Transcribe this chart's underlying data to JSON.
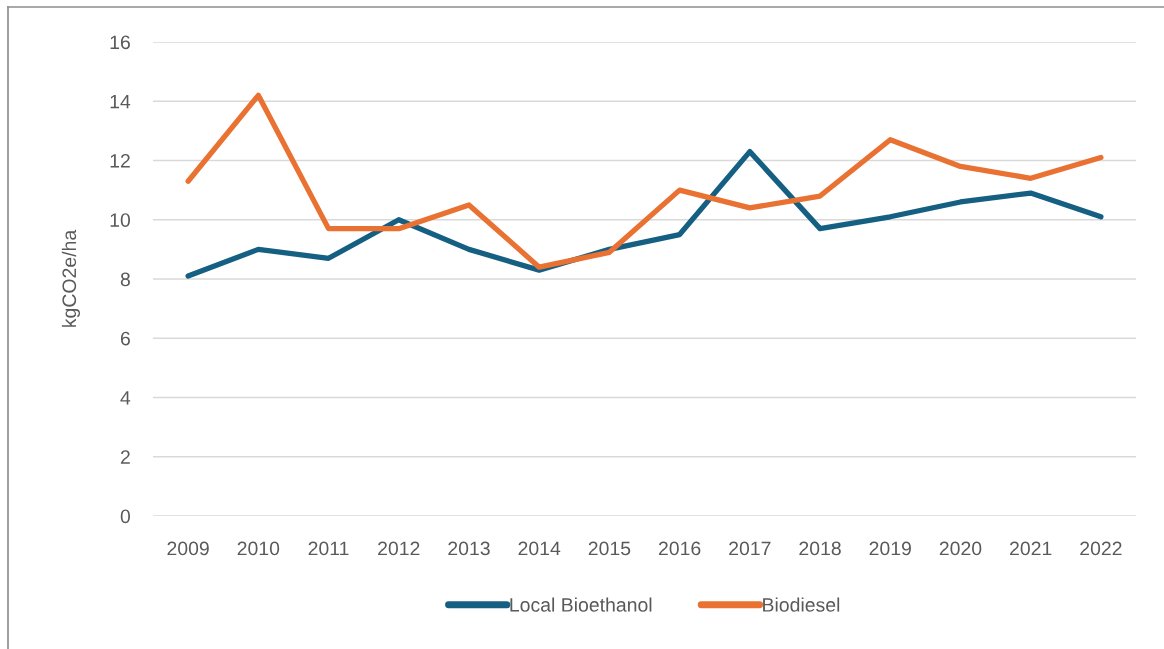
{
  "chart_data": {
    "type": "line",
    "ylabel": "kgCO2e/ha",
    "categories": [
      "2009",
      "2010",
      "2011",
      "2012",
      "2013",
      "2014",
      "2015",
      "2016",
      "2017",
      "2018",
      "2019",
      "2020",
      "2021",
      "2022"
    ],
    "series": [
      {
        "name": "Local Bioethanol",
        "color": "#156082",
        "values": [
          8.1,
          9.0,
          8.7,
          10.0,
          9.0,
          8.3,
          9.0,
          9.5,
          12.3,
          9.7,
          10.1,
          10.6,
          10.9,
          10.1
        ]
      },
      {
        "name": "Biodiesel",
        "color": "#e97132",
        "values": [
          11.3,
          14.2,
          9.7,
          9.7,
          10.5,
          8.4,
          8.9,
          11.0,
          10.4,
          10.8,
          12.7,
          11.8,
          11.4,
          12.1
        ]
      }
    ],
    "ylim": [
      0,
      16
    ],
    "yticks": [
      0,
      2,
      4,
      6,
      8,
      10,
      12,
      14,
      16
    ],
    "grid": "y",
    "legend": "bottom",
    "marker": "none",
    "line_style": "solid"
  }
}
